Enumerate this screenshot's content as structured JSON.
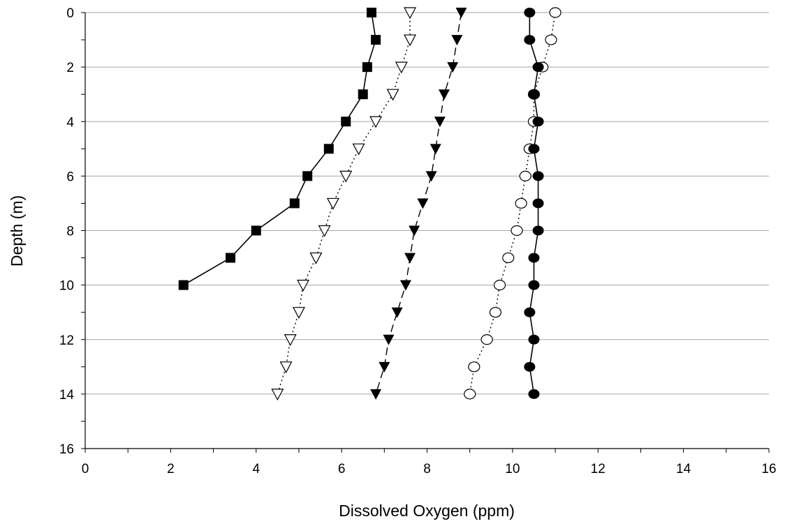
{
  "chart_data": {
    "type": "line",
    "title": "",
    "xlabel": "Dissolved Oxygen (ppm)",
    "ylabel": "Depth (m)",
    "xlim": [
      0,
      16
    ],
    "ylim": [
      0,
      16
    ],
    "y_inverted": true,
    "x_ticks": [
      "0",
      "2",
      "4",
      "6",
      "8",
      "10",
      "12",
      "14",
      "16"
    ],
    "y_ticks": [
      "0",
      "2",
      "4",
      "6",
      "8",
      "10",
      "12",
      "14",
      "16"
    ],
    "grid": "horizontal",
    "legend": "none",
    "series": [
      {
        "marker": "filled-square",
        "line_style": "solid",
        "depth": [
          0,
          1,
          2,
          3,
          4,
          5,
          6,
          7,
          8,
          9,
          10
        ],
        "values": [
          6.7,
          6.8,
          6.6,
          6.5,
          6.1,
          5.7,
          5.2,
          4.9,
          4.0,
          3.4,
          2.3
        ]
      },
      {
        "marker": "open-triangle-down",
        "line_style": "dotted",
        "depth": [
          0,
          1,
          2,
          3,
          4,
          5,
          6,
          7,
          8,
          9,
          10,
          11,
          12,
          13,
          14
        ],
        "values": [
          7.6,
          7.6,
          7.4,
          7.2,
          6.8,
          6.4,
          6.1,
          5.8,
          5.6,
          5.4,
          5.1,
          5.0,
          4.8,
          4.7,
          4.5
        ]
      },
      {
        "marker": "filled-triangle-down",
        "line_style": "dashed",
        "depth": [
          0,
          1,
          2,
          3,
          4,
          5,
          6,
          7,
          8,
          9,
          10,
          11,
          12,
          13,
          14
        ],
        "values": [
          8.8,
          8.7,
          8.6,
          8.4,
          8.3,
          8.2,
          8.1,
          7.9,
          7.7,
          7.6,
          7.5,
          7.3,
          7.1,
          7.0,
          6.8
        ]
      },
      {
        "marker": "open-circle",
        "line_style": "dotted",
        "depth": [
          0,
          1,
          2,
          3,
          4,
          5,
          6,
          7,
          8,
          9,
          10,
          11,
          12,
          13,
          14
        ],
        "values": [
          11.0,
          10.9,
          10.7,
          10.5,
          10.5,
          10.4,
          10.3,
          10.2,
          10.1,
          9.9,
          9.7,
          9.6,
          9.4,
          9.1,
          9.0
        ]
      },
      {
        "marker": "filled-circle",
        "line_style": "solid",
        "depth": [
          0,
          1,
          2,
          3,
          4,
          5,
          6,
          7,
          8,
          9,
          10,
          11,
          12,
          13,
          14
        ],
        "values": [
          10.4,
          10.4,
          10.6,
          10.5,
          10.6,
          10.5,
          10.6,
          10.6,
          10.6,
          10.5,
          10.5,
          10.4,
          10.5,
          10.4,
          10.5
        ]
      }
    ]
  }
}
